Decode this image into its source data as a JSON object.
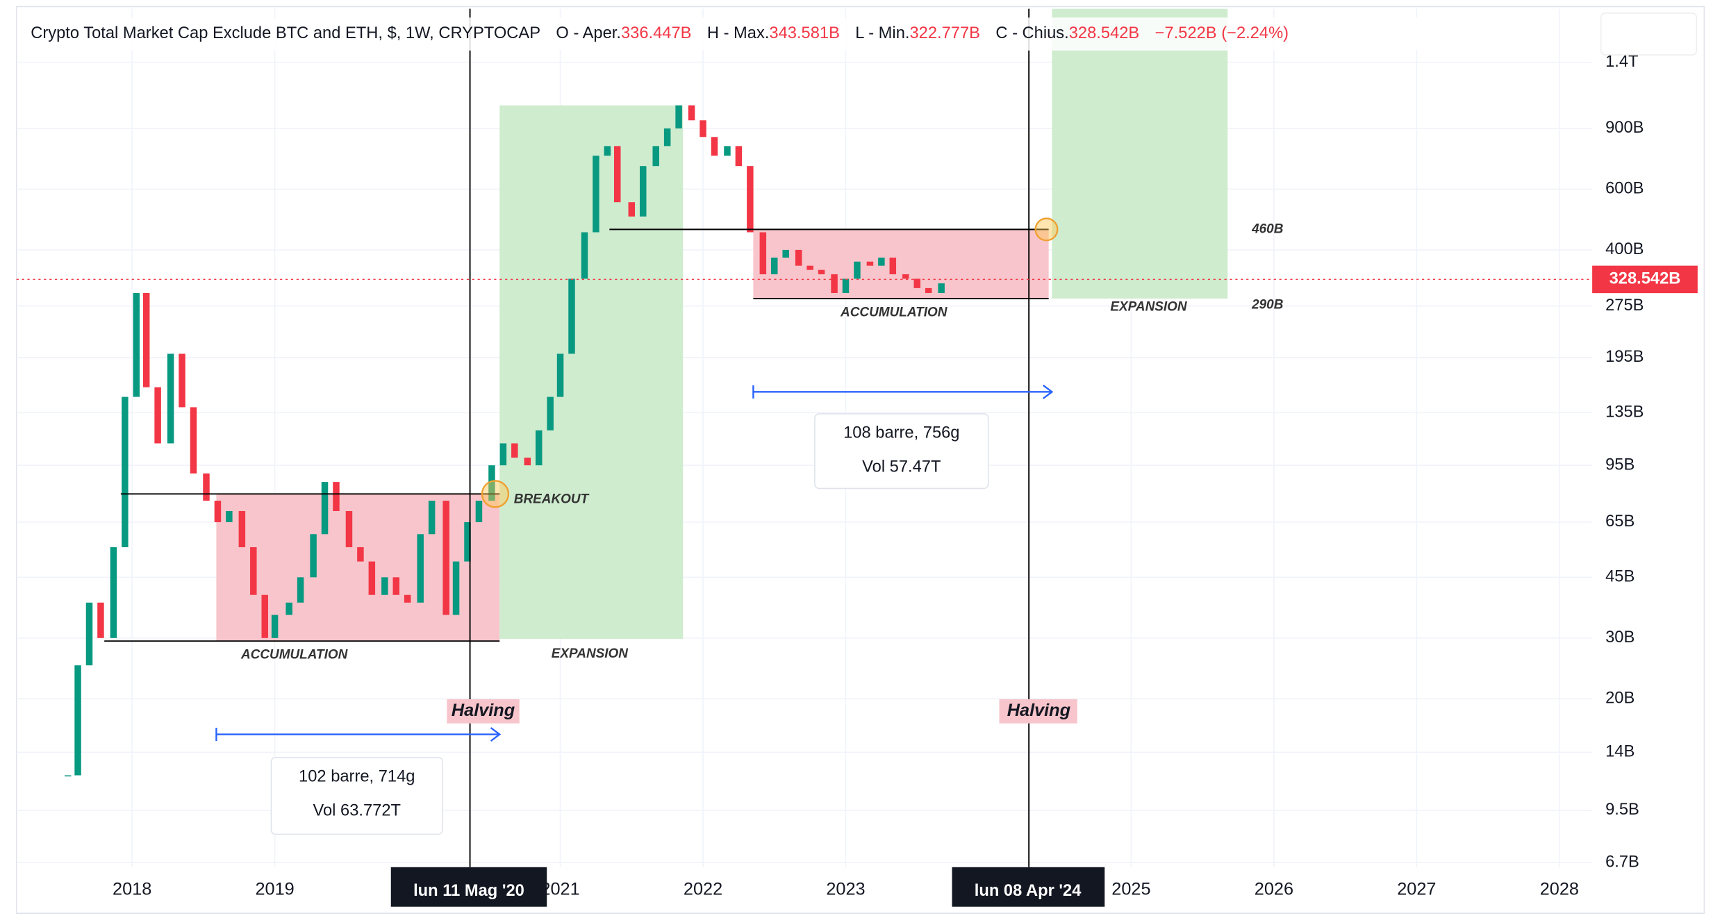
{
  "header": {
    "title": "Crypto Total Market Cap Exclude BTC and ETH, $, 1W, CRYPTOCAP",
    "ohlc": [
      {
        "label": "O - Aper.",
        "value": "336.447B"
      },
      {
        "label": "H - Max.",
        "value": "343.581B"
      },
      {
        "label": "L - Min.",
        "value": "322.777B"
      },
      {
        "label": "C - Chius.",
        "value": "328.542B"
      }
    ],
    "change": "−7.522B (−2.24%)"
  },
  "chart_data": {
    "type": "candlestick",
    "x": [
      2017.55,
      2017.62,
      2017.7,
      2017.78,
      2017.87,
      2017.95,
      2018.03,
      2018.1,
      2018.18,
      2018.27,
      2018.35,
      2018.43,
      2018.52,
      2018.6,
      2018.68,
      2018.77,
      2018.85,
      2018.93,
      2019.0,
      2019.1,
      2019.18,
      2019.27,
      2019.35,
      2019.43,
      2019.52,
      2019.6,
      2019.68,
      2019.77,
      2019.85,
      2019.93,
      2020.02,
      2020.1,
      2020.2,
      2020.27,
      2020.35,
      2020.43,
      2020.52,
      2020.6,
      2020.68,
      2020.77,
      2020.85,
      2020.93,
      2021.0,
      2021.08,
      2021.17,
      2021.25,
      2021.33,
      2021.4,
      2021.5,
      2021.58,
      2021.67,
      2021.75,
      2021.83,
      2021.92,
      2022.0,
      2022.08,
      2022.17,
      2022.25,
      2022.33,
      2022.42,
      2022.5,
      2022.58,
      2022.67,
      2022.75,
      2022.83,
      2022.92,
      2023.0,
      2023.08,
      2023.17,
      2023.25,
      2023.33,
      2023.42,
      2023.5,
      2023.58,
      2023.67
    ],
    "values": [
      12,
      25,
      38,
      30,
      55,
      150,
      300,
      160,
      110,
      200,
      140,
      90,
      75,
      65,
      70,
      55,
      40,
      30,
      35,
      38,
      45,
      60,
      85,
      70,
      55,
      50,
      40,
      45,
      40,
      38,
      60,
      75,
      35,
      50,
      65,
      75,
      95,
      110,
      100,
      95,
      120,
      150,
      200,
      330,
      450,
      750,
      800,
      550,
      500,
      700,
      800,
      900,
      1050,
      950,
      850,
      750,
      800,
      700,
      450,
      340,
      380,
      400,
      360,
      350,
      340,
      300,
      330,
      370,
      360,
      380,
      340,
      330,
      310,
      300,
      320
    ],
    "up_color": "#089981",
    "down_color": "#f23645",
    "log_scale": true,
    "grid": true,
    "xlim": [
      2017.19,
      2028.23
    ],
    "xticks": [
      2018,
      2019,
      2021,
      2022,
      2023,
      2025,
      2026,
      2027,
      2028
    ],
    "ylim": [
      6.5,
      2000
    ],
    "yticks": [
      {
        "value": 1400,
        "label": "1.4T"
      },
      {
        "value": 900,
        "label": "900B"
      },
      {
        "value": 600,
        "label": "600B"
      },
      {
        "value": 400,
        "label": "400B"
      },
      {
        "value": 275,
        "label": "275B"
      },
      {
        "value": 195,
        "label": "195B"
      },
      {
        "value": 135,
        "label": "135B"
      },
      {
        "value": 95,
        "label": "95B"
      },
      {
        "value": 65,
        "label": "65B"
      },
      {
        "value": 45,
        "label": "45B"
      },
      {
        "value": 30,
        "label": "30B"
      },
      {
        "value": 20,
        "label": "20B"
      },
      {
        "value": 14,
        "label": "14B"
      },
      {
        "value": 9.5,
        "label": "9.5B"
      },
      {
        "value": 6.7,
        "label": "6.7B"
      }
    ],
    "last_price": {
      "value": 328.542,
      "label": "328.542B"
    },
    "annotations": {
      "accumulation_1": "ACCUMULATION",
      "expansion_1": "EXPANSION",
      "breakout": "BREAKOUT",
      "accumulation_2": "ACCUMULATION",
      "expansion_2": "EXPANSION",
      "level_high": "460B",
      "level_low": "290B",
      "halving_1": "Halving",
      "halving_2": "Halving",
      "range_1": [
        "102 barre, 714g",
        "Vol 63.772T"
      ],
      "range_2": [
        "108 barre, 756g",
        "Vol 57.47T"
      ],
      "crosshair_1": "lun 11 Mag '20",
      "crosshair_2": "lun 08 Apr '24"
    }
  }
}
